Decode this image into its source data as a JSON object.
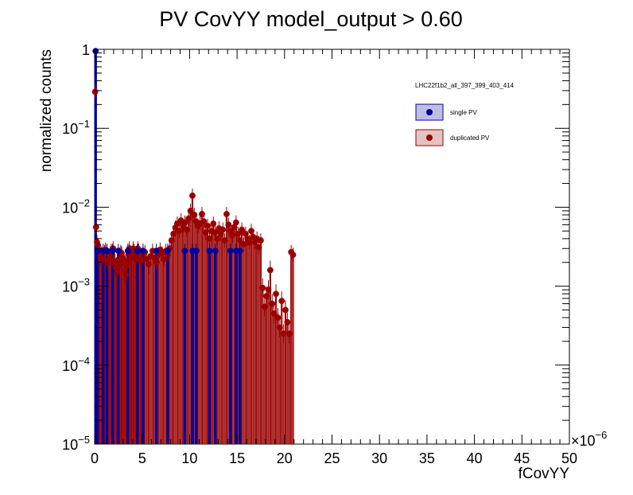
{
  "chart_data": {
    "type": "bar",
    "title": "PV CovYY  model_output > 0.60",
    "xlabel": "fCovYY",
    "ylabel": "normalized counts",
    "x_multiplier": "×10",
    "x_multiplier_exp": "−6",
    "xlim": [
      0,
      50
    ],
    "ylim": [
      1e-05,
      1
    ],
    "ylog": true,
    "grid": false,
    "legend_position": "top-right",
    "legend_header": "LHC22f1b2_all_397_399_403_414",
    "x_ticks": [
      0,
      5,
      10,
      15,
      20,
      25,
      30,
      35,
      40,
      45,
      50
    ],
    "y_ticks": [
      {
        "value": 1e-05,
        "base": "10",
        "exp": "−5"
      },
      {
        "value": 0.0001,
        "base": "10",
        "exp": "−4"
      },
      {
        "value": 0.001,
        "base": "10",
        "exp": "−3"
      },
      {
        "value": 0.01,
        "base": "10",
        "exp": "−2"
      },
      {
        "value": 0.1,
        "base": "10",
        "exp": "−1"
      },
      {
        "value": 1,
        "base": "1",
        "exp": ""
      }
    ],
    "series": [
      {
        "name": "single PV",
        "color": "#000099",
        "fill": "#bfbfe6",
        "bin_width": 0.2,
        "points": [
          [
            0.1,
            0.95
          ],
          [
            0.3,
            0.0028
          ],
          [
            0.9,
            0.0028
          ],
          [
            1.3,
            0.0028
          ],
          [
            1.9,
            0.0028
          ],
          [
            2.5,
            0.0028
          ],
          [
            3.5,
            0.0028
          ],
          [
            4.5,
            0.0028
          ],
          [
            5.1,
            0.0028
          ],
          [
            6.5,
            0.0028
          ],
          [
            7.7,
            0.0028
          ],
          [
            9.5,
            0.0028
          ],
          [
            10.3,
            0.0028
          ],
          [
            10.7,
            0.0028
          ],
          [
            12.1,
            0.0028
          ],
          [
            12.7,
            0.0028
          ],
          [
            14.3,
            0.0028
          ],
          [
            14.9,
            0.0028
          ],
          [
            15.3,
            0.0028
          ]
        ]
      },
      {
        "name": "duplicated PV",
        "color": "#990000",
        "fill": "#e6c2c2",
        "bin_width": 0.1,
        "points": [
          [
            0.05,
            0.29
          ],
          [
            0.15,
            0.0056
          ],
          [
            0.25,
            0.0036
          ],
          [
            0.35,
            0.0033
          ],
          [
            0.45,
            0.0029
          ],
          [
            0.55,
            0.0024
          ],
          [
            0.65,
            0.0022
          ],
          [
            0.75,
            0.0026
          ],
          [
            0.85,
            0.0023
          ],
          [
            0.95,
            0.0025
          ],
          [
            1.05,
            0.0027
          ],
          [
            1.15,
            0.0029
          ],
          [
            1.25,
            0.0024
          ],
          [
            1.35,
            0.002
          ],
          [
            1.45,
            0.0022
          ],
          [
            1.55,
            0.0023
          ],
          [
            1.65,
            0.0026
          ],
          [
            1.75,
            0.0028
          ],
          [
            1.85,
            0.0025
          ],
          [
            1.95,
            0.003
          ],
          [
            2.05,
            0.0021
          ],
          [
            2.15,
            0.0019
          ],
          [
            2.25,
            0.0017
          ],
          [
            2.35,
            0.0015
          ],
          [
            2.45,
            0.0018
          ],
          [
            2.55,
            0.0022
          ],
          [
            2.65,
            0.0025
          ],
          [
            2.75,
            0.0027
          ],
          [
            2.85,
            0.0026
          ],
          [
            2.95,
            0.0023
          ],
          [
            3.05,
            0.002
          ],
          [
            3.15,
            0.0016
          ],
          [
            3.25,
            0.0014
          ],
          [
            3.35,
            0.0018
          ],
          [
            3.45,
            0.0021
          ],
          [
            3.55,
            0.0025
          ],
          [
            3.65,
            0.003
          ],
          [
            3.75,
            0.0027
          ],
          [
            3.85,
            0.0023
          ],
          [
            3.95,
            0.0026
          ],
          [
            4.05,
            0.003
          ],
          [
            4.15,
            0.0028
          ],
          [
            4.25,
            0.0025
          ],
          [
            4.35,
            0.0022
          ],
          [
            4.45,
            0.0026
          ],
          [
            4.55,
            0.003
          ],
          [
            4.65,
            0.0028
          ],
          [
            4.75,
            0.0024
          ],
          [
            4.85,
            0.0021
          ],
          [
            4.95,
            0.0025
          ],
          [
            5.1,
            0.0024
          ],
          [
            5.3,
            0.0027
          ],
          [
            5.5,
            0.0022
          ],
          [
            5.7,
            0.0019
          ],
          [
            5.9,
            0.0024
          ],
          [
            6.1,
            0.0028
          ],
          [
            6.3,
            0.0023
          ],
          [
            6.5,
            0.002
          ],
          [
            6.7,
            0.0025
          ],
          [
            6.9,
            0.0029
          ],
          [
            7.1,
            0.0026
          ],
          [
            7.3,
            0.0022
          ],
          [
            7.5,
            0.0028
          ],
          [
            7.7,
            0.0025
          ],
          [
            7.9,
            0.003
          ],
          [
            8.1,
            0.0038
          ],
          [
            8.3,
            0.0046
          ],
          [
            8.5,
            0.0055
          ],
          [
            8.7,
            0.0062
          ],
          [
            8.9,
            0.005
          ],
          [
            9.1,
            0.0068
          ],
          [
            9.3,
            0.0058
          ],
          [
            9.5,
            0.0064
          ],
          [
            9.7,
            0.0052
          ],
          [
            9.9,
            0.0072
          ],
          [
            10.1,
            0.009
          ],
          [
            10.3,
            0.014
          ],
          [
            10.5,
            0.008
          ],
          [
            10.7,
            0.0066
          ],
          [
            10.9,
            0.0058
          ],
          [
            11.1,
            0.0062
          ],
          [
            11.3,
            0.0082
          ],
          [
            11.5,
            0.0066
          ],
          [
            11.7,
            0.0048
          ],
          [
            11.9,
            0.0058
          ],
          [
            12.1,
            0.004
          ],
          [
            12.3,
            0.005
          ],
          [
            12.5,
            0.0062
          ],
          [
            12.7,
            0.0048
          ],
          [
            12.9,
            0.004
          ],
          [
            13.1,
            0.0054
          ],
          [
            13.3,
            0.0046
          ],
          [
            13.5,
            0.0052
          ],
          [
            13.7,
            0.0038
          ],
          [
            13.9,
            0.0082
          ],
          [
            14.1,
            0.006
          ],
          [
            14.3,
            0.005
          ],
          [
            14.5,
            0.0044
          ],
          [
            14.7,
            0.0056
          ],
          [
            14.9,
            0.0064
          ],
          [
            15.1,
            0.0046
          ],
          [
            15.3,
            0.0038
          ],
          [
            15.5,
            0.0052
          ],
          [
            15.7,
            0.0034
          ],
          [
            15.9,
            0.0046
          ],
          [
            16.1,
            0.004
          ],
          [
            16.3,
            0.0036
          ],
          [
            16.5,
            0.005
          ],
          [
            16.7,
            0.0042
          ],
          [
            16.9,
            0.0036
          ],
          [
            17.1,
            0.004
          ],
          [
            17.3,
            0.0031
          ],
          [
            17.5,
            0.0038
          ],
          [
            17.7,
            0.00095
          ],
          [
            17.9,
            0.00055
          ],
          [
            18.1,
            0.00075
          ],
          [
            18.3,
            0.0009
          ],
          [
            18.5,
            0.0016
          ],
          [
            18.7,
            0.0006
          ],
          [
            18.9,
            0.00045
          ],
          [
            19.1,
            0.0008
          ],
          [
            19.3,
            0.0004
          ],
          [
            19.5,
            0.0003
          ],
          [
            19.7,
            0.00065
          ],
          [
            19.9,
            0.00025
          ],
          [
            20.1,
            0.0005
          ],
          [
            20.3,
            0.00035
          ],
          [
            20.5,
            0.00025
          ],
          [
            20.7,
            0.0027
          ],
          [
            20.9,
            0.0025
          ]
        ]
      }
    ]
  }
}
